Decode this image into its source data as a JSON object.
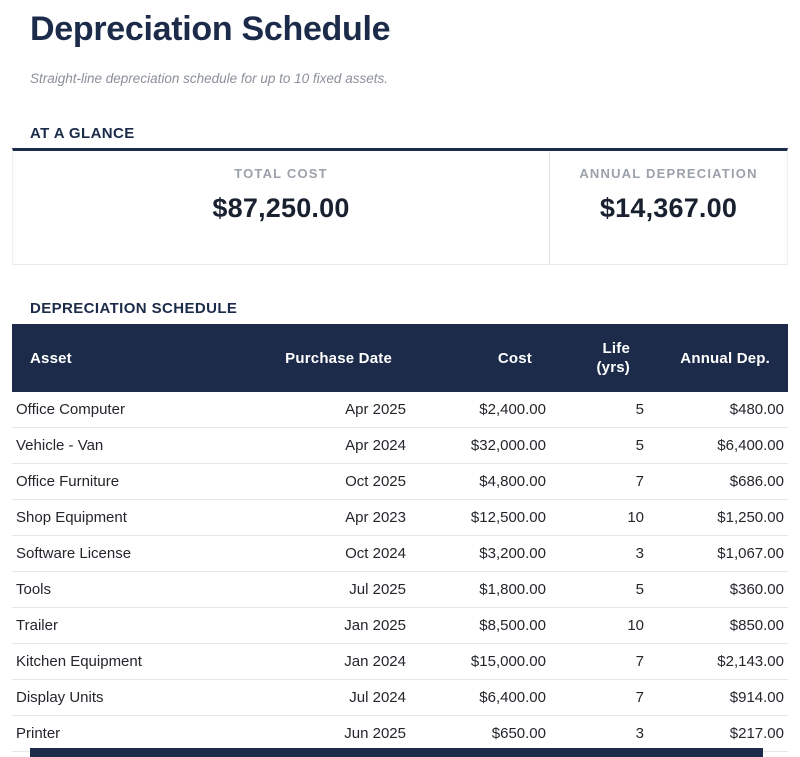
{
  "page": {
    "title": "Depreciation Schedule",
    "subtitle": "Straight-line depreciation schedule for up to 10 fixed assets."
  },
  "glance": {
    "heading": "AT A GLANCE",
    "stats": [
      {
        "label": "TOTAL COST",
        "value": "$87,250.00"
      },
      {
        "label": "ANNUAL DEPRECIATION",
        "value": "$14,367.00"
      }
    ]
  },
  "schedule": {
    "heading": "DEPRECIATION SCHEDULE",
    "columns": [
      "Asset",
      "Purchase Date",
      "Cost",
      "Life (yrs)",
      "Annual Dep."
    ],
    "rows": [
      [
        "Office Computer",
        "Apr 2025",
        "$2,400.00",
        "5",
        "$480.00"
      ],
      [
        "Vehicle - Van",
        "Apr 2024",
        "$32,000.00",
        "5",
        "$6,400.00"
      ],
      [
        "Office Furniture",
        "Oct 2025",
        "$4,800.00",
        "7",
        "$686.00"
      ],
      [
        "Shop Equipment",
        "Apr 2023",
        "$12,500.00",
        "10",
        "$1,250.00"
      ],
      [
        "Software License",
        "Oct 2024",
        "$3,200.00",
        "3",
        "$1,067.00"
      ],
      [
        "Tools",
        "Jul 2025",
        "$1,800.00",
        "5",
        "$360.00"
      ],
      [
        "Trailer",
        "Jan 2025",
        "$8,500.00",
        "10",
        "$850.00"
      ],
      [
        "Kitchen Equipment",
        "Jan 2024",
        "$15,000.00",
        "7",
        "$2,143.00"
      ],
      [
        "Display Units",
        "Jul 2024",
        "$6,400.00",
        "7",
        "$914.00"
      ],
      [
        "Printer",
        "Jun 2025",
        "$650.00",
        "3",
        "$217.00"
      ]
    ]
  },
  "colors": {
    "navy": "#1c2b4a",
    "label_gray": "#9ba1ab",
    "divider": "#e7e8ea"
  }
}
